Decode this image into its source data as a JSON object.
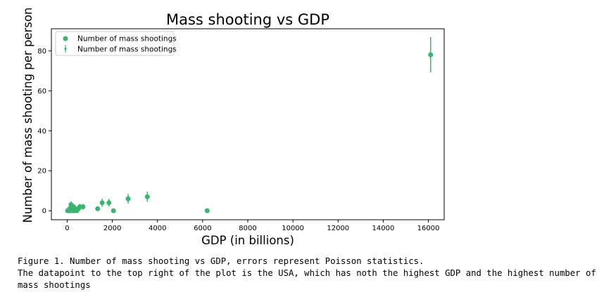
{
  "chart_data": {
    "type": "scatter",
    "title": "Mass shooting vs GDP",
    "xlabel": "GDP (in billions)",
    "ylabel": "Number of mass shooting per person",
    "xlim": [
      -700,
      16700
    ],
    "ylim": [
      -4.5,
      91
    ],
    "x_ticks": [
      0,
      2000,
      4000,
      6000,
      8000,
      10000,
      12000,
      14000,
      16000
    ],
    "y_ticks": [
      0,
      20,
      40,
      60,
      80
    ],
    "grid": false,
    "legend_position": "top-left",
    "legend": [
      {
        "label": "Number of mass shootings",
        "marker": "dot"
      },
      {
        "label": "Number of mass shootings",
        "marker": "errorbar"
      }
    ],
    "color": "#3cb371",
    "series": [
      {
        "points": [
          {
            "x": 16100,
            "y": 78,
            "err": 8.8
          },
          {
            "x": 6200,
            "y": 0,
            "err": 0
          },
          {
            "x": 3550,
            "y": 7,
            "err": 2.6
          },
          {
            "x": 2700,
            "y": 6,
            "err": 2.4
          },
          {
            "x": 2050,
            "y": 0,
            "err": 0
          },
          {
            "x": 1850,
            "y": 4,
            "err": 2.0
          },
          {
            "x": 1550,
            "y": 4,
            "err": 2.0
          },
          {
            "x": 1350,
            "y": 1,
            "err": 1.0
          },
          {
            "x": 700,
            "y": 2,
            "err": 1.4
          },
          {
            "x": 560,
            "y": 2,
            "err": 1.4
          },
          {
            "x": 500,
            "y": 1,
            "err": 1.0
          },
          {
            "x": 430,
            "y": 0,
            "err": 0
          },
          {
            "x": 380,
            "y": 1,
            "err": 1.0
          },
          {
            "x": 320,
            "y": 0,
            "err": 0
          },
          {
            "x": 280,
            "y": 2,
            "err": 1.4
          },
          {
            "x": 240,
            "y": 0,
            "err": 0
          },
          {
            "x": 200,
            "y": 1,
            "err": 1.0
          },
          {
            "x": 170,
            "y": 3,
            "err": 1.7
          },
          {
            "x": 140,
            "y": 0,
            "err": 0
          },
          {
            "x": 110,
            "y": 1,
            "err": 1.0
          },
          {
            "x": 80,
            "y": 0,
            "err": 0
          },
          {
            "x": 50,
            "y": 0,
            "err": 0
          },
          {
            "x": 20,
            "y": 0,
            "err": 0
          }
        ]
      }
    ]
  },
  "caption": {
    "line1": "Figure 1. Number of mass shooting vs GDP, errors represent Poisson statistics.",
    "line2": "The datapoint to the top right of the plot is the USA, which has noth the highest GDP and the highest number of mass shootings"
  }
}
